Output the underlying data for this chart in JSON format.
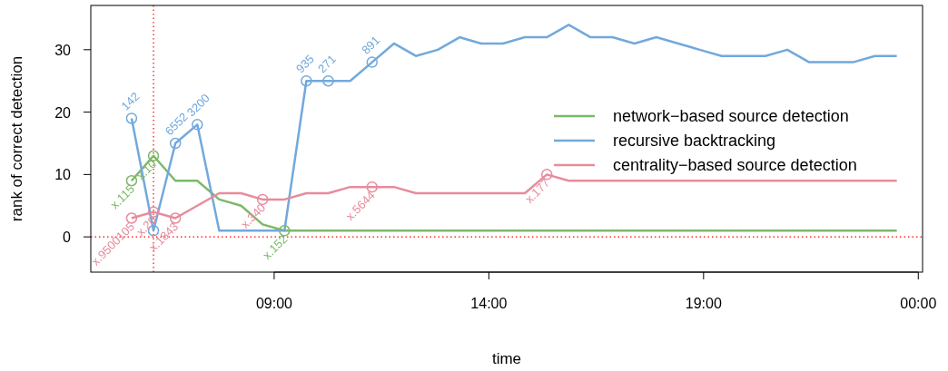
{
  "chart_data": {
    "type": "line",
    "xlabel": "time",
    "ylabel": "rank of correct detection",
    "x": [
      5.68,
      6.19,
      6.7,
      7.21,
      7.72,
      8.23,
      8.73,
      9.24,
      9.75,
      10.26,
      10.77,
      11.28,
      11.79,
      12.3,
      12.81,
      13.32,
      13.82,
      14.33,
      14.84,
      15.35,
      15.86,
      16.37,
      16.88,
      17.39,
      17.9,
      18.41,
      18.91,
      19.42,
      19.93,
      20.44,
      20.95,
      21.46,
      21.97,
      22.48,
      22.99,
      23.5
    ],
    "xlim": [
      4.73,
      24.1
    ],
    "xticks": [
      {
        "value": 9,
        "label": "09:00"
      },
      {
        "value": 14,
        "label": "14:00"
      },
      {
        "value": 19,
        "label": "19:00"
      },
      {
        "value": 24,
        "label": "00:00"
      }
    ],
    "ylim": [
      -5.65,
      37.1
    ],
    "yticks": [
      0,
      10,
      20,
      30
    ],
    "grid": false,
    "legend": "right",
    "marker": "none",
    "series": [
      {
        "name": "network−based source detection",
        "color": "#7db86a",
        "values": [
          9,
          13,
          9,
          9,
          6,
          5,
          2,
          1,
          1,
          1,
          1,
          1,
          1,
          1,
          1,
          1,
          1,
          1,
          1,
          1,
          1,
          1,
          1,
          1,
          1,
          1,
          1,
          1,
          1,
          1,
          1,
          1,
          1,
          1,
          1,
          1
        ]
      },
      {
        "name": "recursive backtracking",
        "color": "#72a9dc",
        "values": [
          19,
          1,
          15,
          18,
          1,
          1,
          1,
          1,
          25,
          25,
          25,
          28,
          31,
          29,
          30,
          32,
          31,
          31,
          32,
          32,
          34,
          32,
          32,
          31,
          32,
          31,
          30,
          29,
          29,
          29,
          30,
          28,
          28,
          28,
          29,
          29
        ]
      },
      {
        "name": "centrality−based source detection",
        "color": "#e68c9c",
        "values": [
          3,
          4,
          3,
          5,
          7,
          7,
          6,
          6,
          7,
          7,
          8,
          8,
          8,
          7,
          7,
          7,
          7,
          7,
          7,
          10,
          9,
          9,
          9,
          9,
          9,
          9,
          9,
          9,
          9,
          9,
          9,
          9,
          9,
          9,
          9,
          9
        ]
      },
      {
        "type": "scatter",
        "marker": "circle",
        "color": "#72a9dc",
        "x": [
          5.68,
          6.19,
          6.7,
          7.21,
          9.75,
          10.26,
          11.28
        ],
        "values": [
          19,
          1,
          15,
          18,
          25,
          25,
          28
        ]
      },
      {
        "type": "scatter",
        "marker": "circle",
        "color": "#7db86a",
        "x": [
          5.68,
          6.19,
          9.24
        ],
        "values": [
          9,
          13,
          1
        ]
      },
      {
        "type": "scatter",
        "marker": "circle",
        "color": "#e68c9c",
        "x": [
          5.68,
          6.19,
          6.7,
          8.73,
          11.28,
          15.35
        ],
        "values": [
          3,
          4,
          3,
          6,
          8,
          10
        ]
      }
    ],
    "annotations": [
      {
        "text": "142",
        "x": 5.68,
        "y": 19
      },
      {
        "text": "6552",
        "x": 6.7,
        "y": 15
      },
      {
        "text": "3200",
        "x": 7.21,
        "y": 18
      },
      {
        "text": "935",
        "x": 9.75,
        "y": 25
      },
      {
        "text": "271",
        "x": 10.26,
        "y": 25
      },
      {
        "text": "891",
        "x": 11.28,
        "y": 28
      },
      {
        "text": "x.115",
        "x": 5.68,
        "y": 9
      },
      {
        "text": "x.10",
        "x": 6.19,
        "y": 13
      },
      {
        "text": "x.152",
        "x": 9.24,
        "y": 1
      },
      {
        "text": "x.9500105",
        "x": 5.68,
        "y": 3
      },
      {
        "text": "x.20",
        "x": 6.19,
        "y": 4
      },
      {
        "text": "x.1843",
        "x": 6.7,
        "y": 3
      },
      {
        "text": "x.340",
        "x": 8.73,
        "y": 6
      },
      {
        "text": "x.5644",
        "x": 11.28,
        "y": 8
      },
      {
        "text": "x.177",
        "x": 15.35,
        "y": 10
      }
    ],
    "ref_lines": [
      {
        "axis": "x",
        "value": 6.19,
        "color": "#ff0000",
        "line_style": "dotted"
      },
      {
        "axis": "y",
        "value": 0,
        "color": "#ff0000",
        "line_style": "dotted"
      }
    ]
  }
}
